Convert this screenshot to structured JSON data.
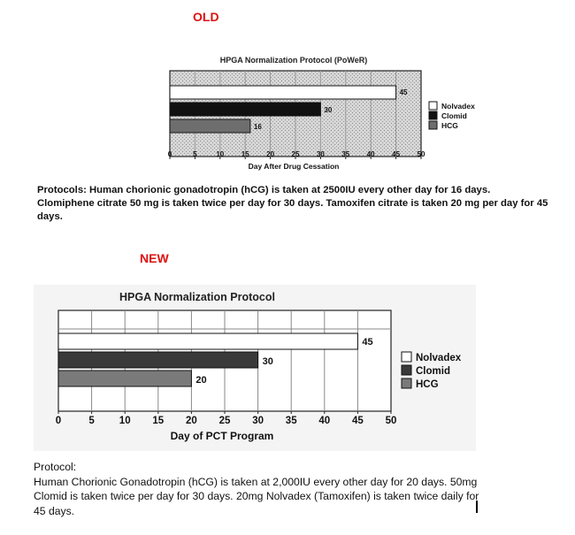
{
  "labels": {
    "old": "OLD",
    "new": "NEW"
  },
  "old": {
    "protocol_text": "Protocols: Human chorionic gonadotropin (hCG) is taken at 2500IU every other day for 16 days. Clomiphene citrate 50 mg is taken twice per day for 30 days. Tamoxifen citrate is taken 20 mg per day for 45 days."
  },
  "new": {
    "protocol_header": "Protocol:",
    "protocol_text": "Human Chorionic Gonadotropin (hCG) is taken at 2,000IU every other day for 20 days. 50mg Clomid is taken twice per day for 30 days. 20mg Nolvadex (Tamoxifen) is taken twice daily for 45 days."
  },
  "colors": {
    "nolvadex": "#ffffff",
    "clomid": "#111111",
    "hcg": "#6e6e6e",
    "label_red": "#dd1111"
  },
  "chart_data": [
    {
      "type": "bar",
      "orientation": "horizontal",
      "title": "HPGA Normalization Protocol (PoWeR)",
      "xlabel": "Day After Drug Cessation",
      "ylabel": "",
      "xlim": [
        0,
        50
      ],
      "xticks": [
        0,
        5,
        10,
        15,
        20,
        25,
        30,
        35,
        40,
        45,
        50
      ],
      "legend_position": "right",
      "series": [
        {
          "name": "Nolvadex",
          "value": 45,
          "color": "#ffffff"
        },
        {
          "name": "Clomid",
          "value": 30,
          "color": "#111111"
        },
        {
          "name": "HCG",
          "value": 16,
          "color": "#6e6e6e"
        }
      ]
    },
    {
      "type": "bar",
      "orientation": "horizontal",
      "title": "HPGA Normalization Protocol",
      "xlabel": "Day of PCT Program",
      "ylabel": "",
      "xlim": [
        0,
        50
      ],
      "xticks": [
        0,
        5,
        10,
        15,
        20,
        25,
        30,
        35,
        40,
        45,
        50
      ],
      "legend_position": "right",
      "series": [
        {
          "name": "Nolvadex",
          "value": 45,
          "color": "#ffffff"
        },
        {
          "name": "Clomid",
          "value": 30,
          "color": "#3a3a3a"
        },
        {
          "name": "HCG",
          "value": 20,
          "color": "#7a7a7a"
        }
      ]
    }
  ]
}
